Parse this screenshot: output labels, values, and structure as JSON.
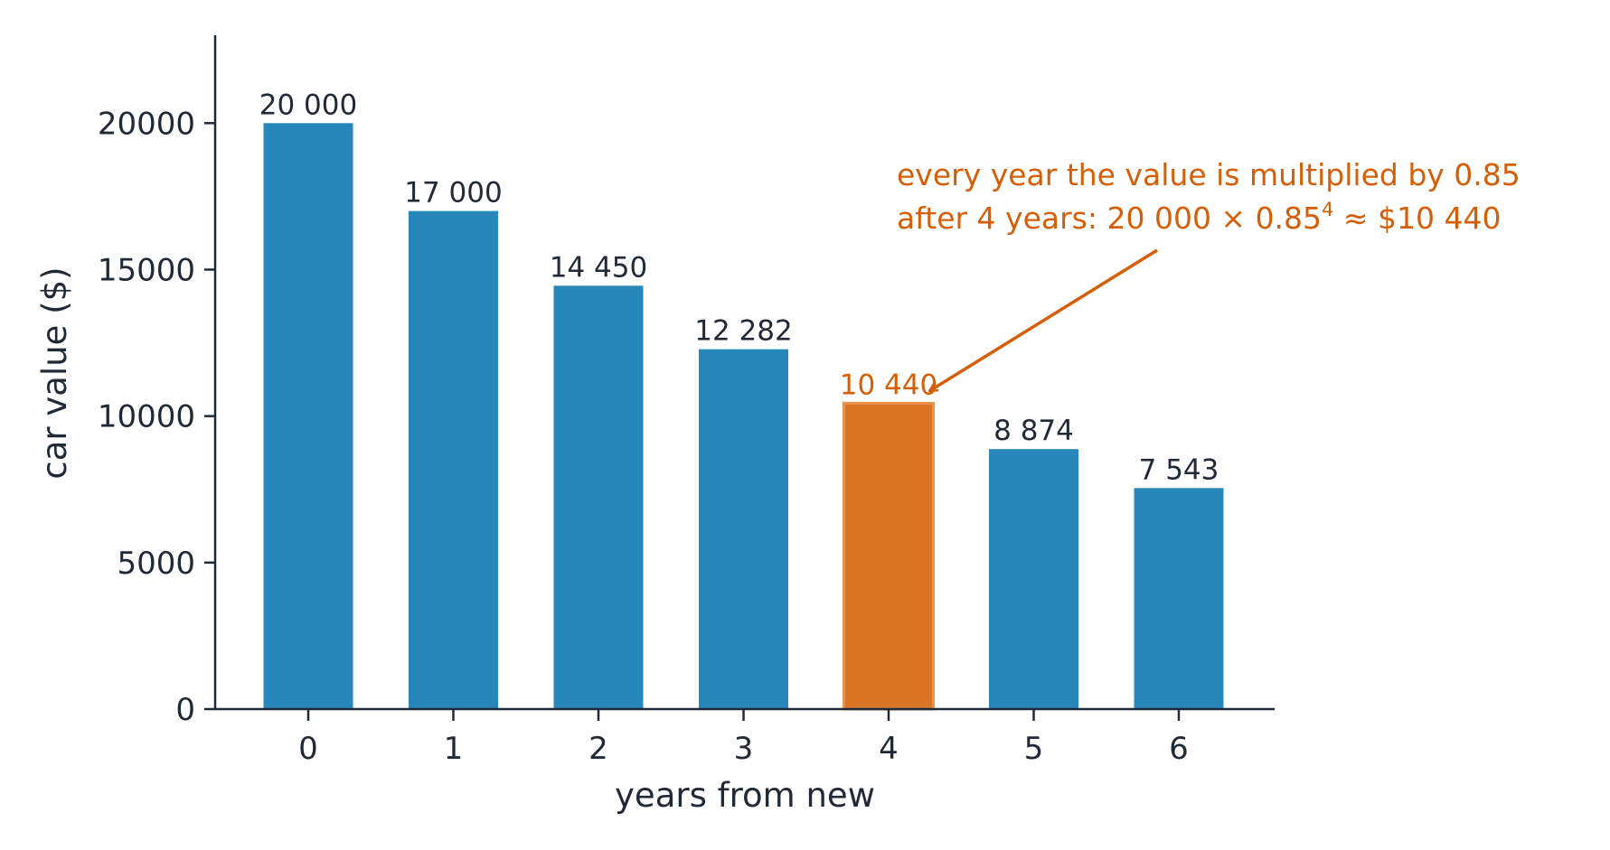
{
  "chart_data": {
    "type": "bar",
    "categories": [
      "0",
      "1",
      "2",
      "3",
      "4",
      "5",
      "6"
    ],
    "values": [
      20000,
      17000,
      14450,
      12282,
      10440,
      8874,
      7543
    ],
    "value_labels": [
      "20 000",
      "17 000",
      "14 450",
      "12 282",
      "10 440",
      "8 874",
      "7 543"
    ],
    "highlight_index": 4,
    "xlabel": "years from new",
    "ylabel": "car value ($)",
    "ylim": [
      0,
      23000
    ],
    "yticks": [
      0,
      5000,
      10000,
      15000,
      20000
    ],
    "ytick_labels": [
      "0",
      "5000",
      "10000",
      "15000",
      "20000"
    ],
    "grid": false,
    "annotation": {
      "line1": "every year the value is multiplied by 0.85",
      "line2_prefix": "after 4 years: 20 000 × 0.85",
      "line2_exponent": "4",
      "line2_suffix": " ≈ $10 440",
      "points_to_index": 4
    }
  },
  "colors": {
    "bar": "#2787bb",
    "highlight_bar": "#d97525",
    "highlight_edge": "#e8944f",
    "annotation": "#d45f08",
    "axis": "#1f2937",
    "text": "#1f2937"
  }
}
